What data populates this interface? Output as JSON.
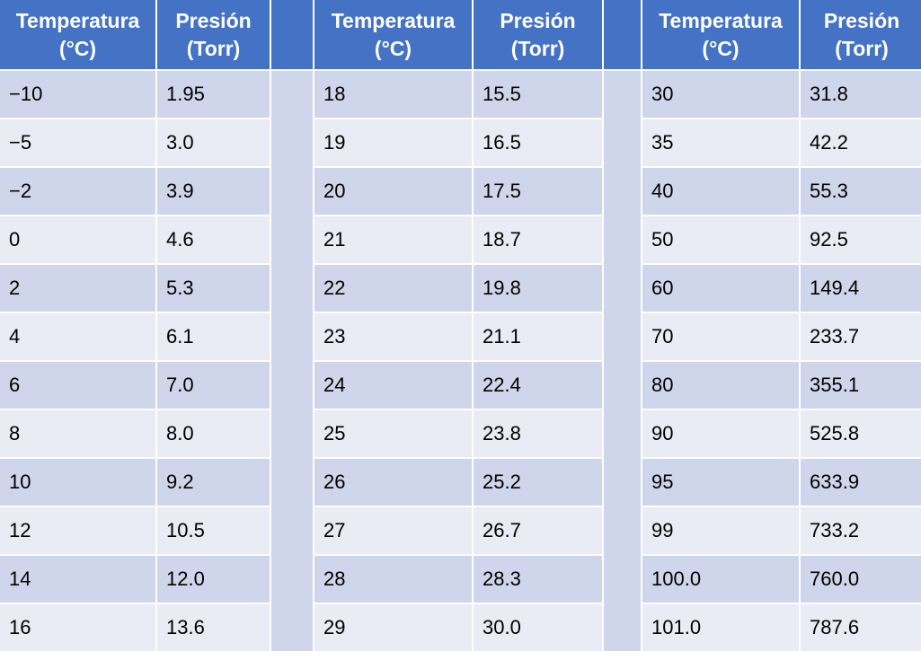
{
  "headers": [
    "Temperatura\n(°C)",
    "Presión\n(Torr)",
    "Temperatura\n(°C)",
    "Presión\n(Torr)",
    "Temperatura\n(°C)",
    "Presión\n(Torr)"
  ],
  "rows": [
    [
      "−10",
      "1.95",
      "18",
      "15.5",
      "30",
      "31.8"
    ],
    [
      "−5",
      "3.0",
      "19",
      "16.5",
      "35",
      "42.2"
    ],
    [
      "−2",
      "3.9",
      "20",
      "17.5",
      "40",
      "55.3"
    ],
    [
      "0",
      "4.6",
      "21",
      "18.7",
      "50",
      "92.5"
    ],
    [
      "2",
      "5.3",
      "22",
      "19.8",
      "60",
      "149.4"
    ],
    [
      "4",
      "6.1",
      "23",
      "21.1",
      "70",
      "233.7"
    ],
    [
      "6",
      "7.0",
      "24",
      "22.4",
      "80",
      "355.1"
    ],
    [
      "8",
      "8.0",
      "25",
      "23.8",
      "90",
      "525.8"
    ],
    [
      "10",
      "9.2",
      "26",
      "25.2",
      "95",
      "633.9"
    ],
    [
      "12",
      "10.5",
      "27",
      "26.7",
      "99",
      "733.2"
    ],
    [
      "14",
      "12.0",
      "28",
      "28.3",
      "100.0",
      "760.0"
    ],
    [
      "16",
      "13.6",
      "29",
      "30.0",
      "101.0",
      "787.6"
    ]
  ],
  "colors": {
    "header": "#4472c4",
    "row_odd": "#cfd5ea",
    "row_even": "#e9ebf5",
    "header_text": "#ffffff"
  }
}
